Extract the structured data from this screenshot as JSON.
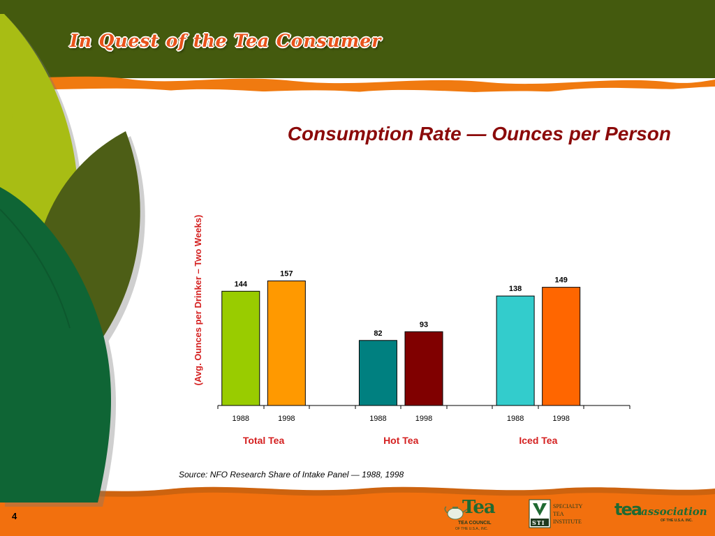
{
  "header": {
    "title": "In Quest of the Tea Consumer"
  },
  "colors": {
    "header_green": "#445a0e",
    "header_orange": "#f07a10",
    "footer_orange": "#f2700e",
    "accent_red": "#8b0a0a",
    "group_label_red": "#d42020"
  },
  "chart_data": {
    "type": "bar",
    "title": "Consumption Rate — Ounces per Person",
    "ylabel": "(Avg. Ounces per Drinker – Two Weeks)",
    "xlabel": "",
    "ylim": [
      0,
      190
    ],
    "grid": false,
    "legend": "none",
    "groups": [
      {
        "label": "Total Tea",
        "bars": [
          {
            "year": "1988",
            "value": 144,
            "color": "#99cc00"
          },
          {
            "year": "1998",
            "value": 157,
            "color": "#ff9900"
          }
        ]
      },
      {
        "label": "Hot Tea",
        "bars": [
          {
            "year": "1988",
            "value": 82,
            "color": "#008080"
          },
          {
            "year": "1998",
            "value": 93,
            "color": "#800000"
          }
        ]
      },
      {
        "label": "Iced Tea",
        "bars": [
          {
            "year": "1988",
            "value": 138,
            "color": "#33cccc"
          },
          {
            "year": "1998",
            "value": 149,
            "color": "#ff6600"
          }
        ]
      }
    ]
  },
  "source_note": "Source: NFO Research Share of Intake Panel — 1988, 1998",
  "slide_number": "4",
  "logos": {
    "tea_council": {
      "mark": "Tea",
      "line1": "TEA COUNCIL",
      "line2": "OF THE U.S.A., INC."
    },
    "sti": {
      "mark": "STI",
      "line1": "SPECIALTY",
      "line2": "TEA",
      "line3": "INSTITUTE"
    },
    "tea_association": {
      "mark": "tea",
      "name": "association",
      "sub": "OF THE U.S.A. INC."
    }
  }
}
